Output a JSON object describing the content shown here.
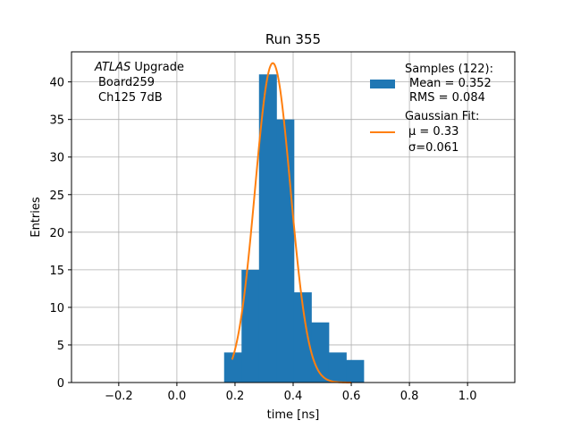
{
  "chart_data": {
    "type": "bar",
    "title": "Run 355",
    "xlabel": "time [ns]",
    "ylabel": "Entries",
    "xlim": [
      -0.3625,
      1.1625
    ],
    "ylim": [
      0,
      44
    ],
    "xticks": [
      -0.2,
      0.0,
      0.2,
      0.4,
      0.6,
      0.8,
      1.0
    ],
    "xtick_labels": [
      "−0.2",
      "0.0",
      "0.2",
      "0.4",
      "0.6",
      "0.8",
      "1.0"
    ],
    "yticks": [
      0,
      5,
      10,
      15,
      20,
      25,
      30,
      35,
      40
    ],
    "grid": true,
    "bar_color": "#1f77b4",
    "fit_color": "#ff7f0e",
    "bin_edges": [
      0.1625,
      0.2225,
      0.2825,
      0.3425,
      0.4025,
      0.4625,
      0.5225,
      0.5825,
      0.6425
    ],
    "series": [
      {
        "name": "Samples (122):",
        "type": "histogram",
        "counts": [
          4,
          15,
          41,
          35,
          12,
          8,
          4,
          3
        ]
      },
      {
        "name": "Gaussian Fit:",
        "type": "line",
        "function": "gaussian",
        "mu": 0.33,
        "sigma": 0.061,
        "amplitude": 42.5,
        "x_range": [
          0.19,
          0.6
        ]
      }
    ],
    "annotation": [
      "ATLAS",
      " Upgrade",
      "Board259",
      "Ch125 7dB"
    ],
    "legend": {
      "position": "top-right",
      "entries": [
        {
          "lines": [
            "Samples (122):",
            "Mean = 0.352",
            "RMS = 0.084"
          ]
        },
        {
          "lines": [
            "Gaussian Fit:",
            "μ = 0.33",
            "σ=0.061"
          ]
        }
      ]
    }
  }
}
